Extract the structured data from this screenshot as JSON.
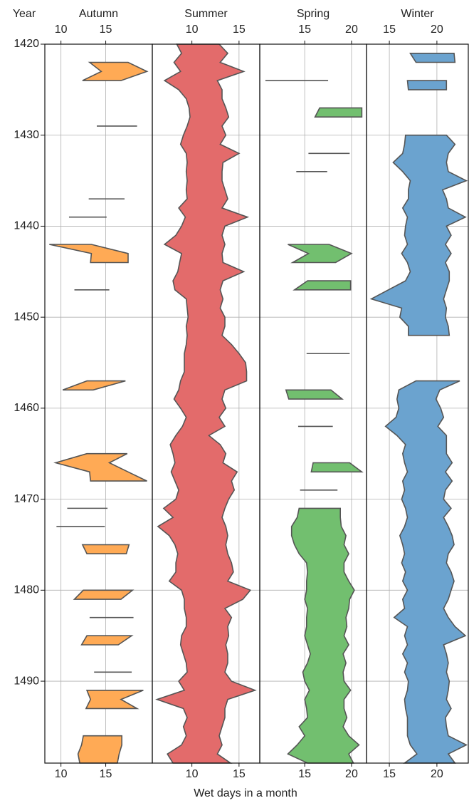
{
  "chart_data": {
    "type": "range",
    "y_label": "Year",
    "x_label": "Wet days in a month",
    "x": [
      1420,
      1421,
      1422,
      1423,
      1424,
      1425,
      1426,
      1427,
      1428,
      1429,
      1430,
      1431,
      1432,
      1433,
      1434,
      1435,
      1436,
      1437,
      1438,
      1439,
      1440,
      1441,
      1442,
      1443,
      1444,
      1445,
      1446,
      1447,
      1448,
      1449,
      1450,
      1451,
      1452,
      1453,
      1454,
      1455,
      1456,
      1457,
      1458,
      1459,
      1460,
      1461,
      1462,
      1463,
      1464,
      1465,
      1466,
      1467,
      1468,
      1469,
      1470,
      1471,
      1472,
      1473,
      1474,
      1475,
      1476,
      1477,
      1478,
      1479,
      1480,
      1481,
      1482,
      1483,
      1484,
      1485,
      1486,
      1487,
      1488,
      1489,
      1490,
      1491,
      1492,
      1493,
      1494,
      1495,
      1496,
      1497,
      1498,
      1499
    ],
    "ylim": [
      1420,
      1499
    ],
    "yticks": [
      1420,
      1430,
      1440,
      1450,
      1460,
      1470,
      1480,
      1490
    ],
    "grid": true,
    "edge_color": "#555555",
    "series": [
      {
        "name": "Autumn",
        "color": "#ffaa55",
        "xlim": [
          8.2,
          20.2
        ],
        "xticks": [
          10,
          15
        ],
        "low": [
          null,
          null,
          13.2,
          14.5,
          12.4,
          null,
          null,
          null,
          null,
          14.0,
          null,
          null,
          null,
          null,
          null,
          null,
          null,
          13.1,
          null,
          10.9,
          null,
          null,
          8.7,
          13.4,
          13.3,
          null,
          null,
          11.5,
          null,
          null,
          null,
          null,
          null,
          null,
          null,
          null,
          null,
          12.9,
          10.2,
          null,
          null,
          null,
          null,
          null,
          null,
          12.9,
          9.4,
          13.2,
          13.3,
          null,
          null,
          10.7,
          null,
          9.5,
          null,
          12.4,
          12.9,
          null,
          null,
          null,
          12.5,
          11.5,
          null,
          13.2,
          null,
          12.9,
          12.3,
          null,
          null,
          13.7,
          null,
          12.9,
          13.3,
          12.8,
          null,
          null,
          12.5,
          12.3,
          11.9,
          12.1
        ],
        "high": [
          null,
          null,
          17.5,
          19.6,
          16.7,
          null,
          null,
          null,
          null,
          18.5,
          null,
          null,
          null,
          null,
          null,
          null,
          null,
          17.1,
          null,
          15.1,
          null,
          null,
          13.4,
          17.5,
          17.5,
          null,
          null,
          15.4,
          null,
          null,
          null,
          null,
          null,
          null,
          null,
          null,
          null,
          17.2,
          13.6,
          null,
          null,
          null,
          null,
          null,
          null,
          17.4,
          15.4,
          17.5,
          19.6,
          null,
          null,
          15.2,
          null,
          14.9,
          null,
          17.6,
          17.3,
          null,
          null,
          null,
          18.0,
          16.7,
          null,
          18.1,
          null,
          17.9,
          16.4,
          null,
          null,
          17.9,
          null,
          19.2,
          16.7,
          18.5,
          null,
          null,
          16.8,
          16.8,
          16.5,
          16.3
        ]
      },
      {
        "name": "Summer",
        "color": "#e36b6b",
        "xlim": [
          5.8,
          17.2
        ],
        "xticks": [
          10,
          15
        ],
        "low": [
          8.4,
          8.9,
          8.1,
          8.8,
          7.1,
          8.6,
          9.4,
          9.7,
          9.8,
          9.5,
          9.1,
          8.8,
          9.4,
          9.5,
          9.4,
          9.5,
          9.4,
          9.5,
          8.6,
          9.3,
          8.9,
          8.3,
          7.1,
          8.9,
          8.7,
          8.5,
          8.0,
          8.2,
          9.4,
          9.5,
          9.6,
          9.4,
          9.5,
          9.4,
          9.2,
          9.2,
          9.2,
          8.8,
          8.6,
          8.1,
          8.8,
          9.4,
          9.0,
          8.3,
          7.7,
          8.0,
          8.2,
          7.8,
          8.2,
          8.6,
          8.3,
          7.0,
          8.0,
          6.4,
          7.6,
          8.2,
          8.5,
          8.3,
          8.3,
          7.6,
          8.9,
          9.2,
          9.2,
          9.4,
          9.4,
          8.9,
          8.8,
          9.1,
          9.4,
          9.5,
          8.6,
          9.2,
          6.3,
          9.1,
          9.5,
          9.1,
          9.4,
          8.9,
          7.4,
          8.0
        ],
        "high": [
          12.9,
          13.8,
          13.0,
          15.5,
          12.7,
          13.2,
          13.2,
          13.6,
          13.9,
          13.2,
          13.6,
          13.0,
          15.0,
          13.3,
          13.2,
          13.2,
          13.5,
          13.8,
          13.2,
          15.9,
          13.5,
          13.2,
          13.5,
          13.2,
          13.3,
          15.5,
          13.3,
          13.0,
          13.3,
          13.0,
          13.5,
          13.5,
          13.2,
          14.2,
          15.0,
          15.7,
          15.8,
          15.8,
          13.5,
          13.2,
          13.6,
          12.9,
          13.5,
          11.8,
          13.0,
          13.6,
          13.3,
          14.8,
          14.2,
          14.5,
          13.9,
          13.5,
          13.2,
          13.6,
          13.8,
          13.6,
          13.8,
          14.2,
          14.4,
          13.8,
          16.2,
          15.4,
          13.5,
          14.2,
          13.8,
          13.9,
          13.6,
          13.8,
          13.8,
          13.5,
          14.2,
          16.7,
          13.8,
          13.5,
          13.5,
          13.2,
          12.9,
          13.2,
          12.7,
          14.1
        ]
      },
      {
        "name": "Spring",
        "color": "#72bf6f",
        "xlim": [
          10.2,
          21.6
        ],
        "xticks": [
          15,
          20
        ],
        "low": [
          null,
          null,
          null,
          null,
          10.8,
          null,
          null,
          16.6,
          16.1,
          null,
          null,
          null,
          15.4,
          null,
          14.1,
          null,
          null,
          null,
          null,
          null,
          null,
          null,
          13.2,
          15.4,
          13.7,
          null,
          15.3,
          13.9,
          null,
          null,
          null,
          null,
          null,
          null,
          15.2,
          null,
          null,
          null,
          13.0,
          13.3,
          null,
          null,
          14.3,
          null,
          null,
          null,
          15.9,
          15.7,
          null,
          14.5,
          null,
          14.4,
          14.2,
          13.6,
          13.6,
          13.9,
          14.4,
          15.2,
          15.3,
          15.2,
          15.2,
          15.0,
          15.3,
          15.2,
          15.2,
          15.0,
          15.3,
          15.6,
          15.3,
          14.8,
          15.0,
          15.5,
          15.0,
          15.2,
          15.3,
          14.4,
          15.0,
          14.2,
          13.2,
          15.3
        ],
        "high": [
          null,
          null,
          null,
          null,
          17.5,
          null,
          null,
          21.1,
          21.1,
          null,
          null,
          null,
          19.8,
          null,
          17.4,
          null,
          null,
          null,
          null,
          null,
          null,
          null,
          17.6,
          20.0,
          18.3,
          null,
          19.9,
          19.9,
          null,
          null,
          null,
          null,
          null,
          null,
          19.8,
          null,
          null,
          null,
          17.8,
          19.0,
          null,
          null,
          18.0,
          null,
          null,
          null,
          19.8,
          21.1,
          null,
          18.5,
          null,
          18.8,
          18.8,
          18.9,
          19.4,
          19.2,
          19.7,
          19.2,
          19.2,
          19.7,
          20.3,
          19.8,
          19.7,
          19.4,
          19.5,
          19.2,
          19.7,
          19.1,
          19.4,
          19.1,
          19.2,
          19.9,
          19.2,
          19.2,
          19.5,
          19.1,
          19.7,
          20.8,
          19.7,
          20.2
        ]
      },
      {
        "name": "Winter",
        "color": "#6ba3cf",
        "xlim": [
          12.6,
          23.3
        ],
        "xticks": [
          15,
          20
        ],
        "low": [
          null,
          17.2,
          17.8,
          null,
          16.9,
          17.0,
          null,
          null,
          null,
          null,
          16.7,
          16.6,
          16.4,
          15.4,
          16.4,
          17.2,
          17.0,
          17.0,
          16.4,
          16.9,
          16.7,
          16.6,
          16.9,
          16.3,
          16.9,
          17.2,
          16.7,
          14.9,
          13.1,
          16.3,
          16.1,
          17.0,
          17.0,
          null,
          null,
          null,
          null,
          17.8,
          16.0,
          15.8,
          16.0,
          15.7,
          14.6,
          15.8,
          16.7,
          16.4,
          16.6,
          16.9,
          16.4,
          16.6,
          16.3,
          16.7,
          16.9,
          16.6,
          16.1,
          16.4,
          16.6,
          16.3,
          16.7,
          16.4,
          16.9,
          16.4,
          16.6,
          15.5,
          16.9,
          16.6,
          16.9,
          16.4,
          16.9,
          16.6,
          17.0,
          16.9,
          16.6,
          16.7,
          16.9,
          16.9,
          16.9,
          17.2,
          17.9,
          16.6
        ],
        "high": [
          null,
          21.8,
          21.9,
          null,
          21.0,
          21.0,
          null,
          null,
          null,
          null,
          21.0,
          21.9,
          21.2,
          21.0,
          21.2,
          23.1,
          20.6,
          21.0,
          21.2,
          23.0,
          21.0,
          21.5,
          20.9,
          21.5,
          20.9,
          21.3,
          21.3,
          21.0,
          20.7,
          21.0,
          20.9,
          21.2,
          21.3,
          null,
          null,
          null,
          null,
          22.4,
          20.3,
          19.9,
          20.4,
          20.7,
          20.1,
          21.0,
          21.0,
          21.0,
          21.6,
          20.9,
          21.6,
          20.9,
          20.7,
          21.5,
          20.7,
          21.2,
          21.6,
          21.8,
          21.2,
          21.0,
          21.5,
          21.8,
          21.5,
          21.2,
          20.7,
          21.2,
          21.9,
          23.0,
          20.7,
          21.0,
          21.2,
          21.0,
          21.3,
          21.2,
          21.0,
          21.5,
          20.9,
          21.0,
          21.2,
          23.1,
          21.2,
          21.9
        ]
      }
    ]
  }
}
